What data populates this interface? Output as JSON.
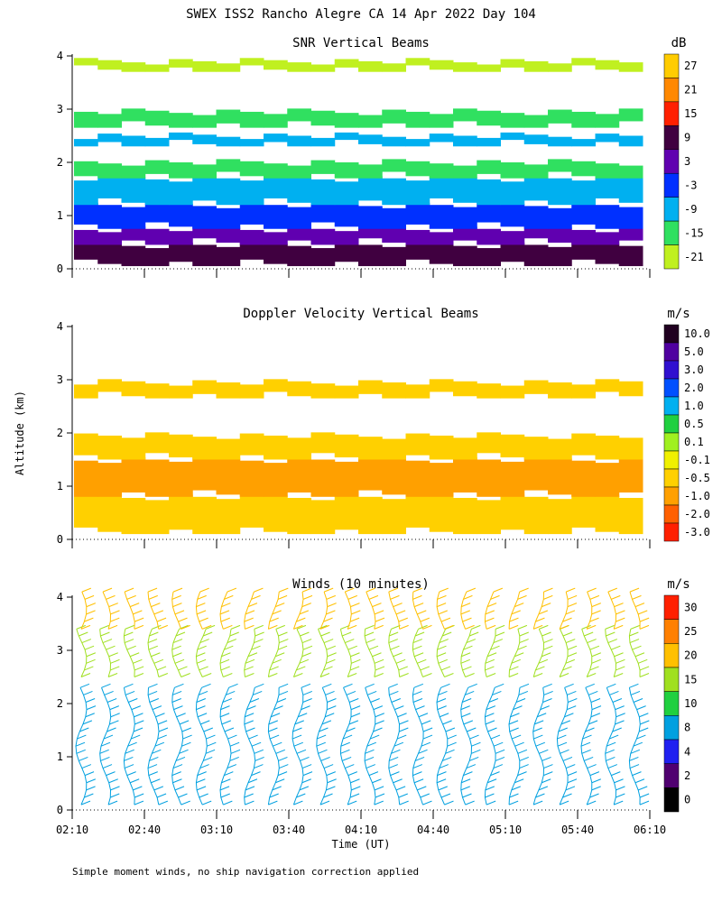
{
  "figure_title": "SWEX ISS2 Rancho Alegre CA  14 Apr 2022 Day 104",
  "footnote": "Simple moment winds, no ship navigation correction applied",
  "shared_axes": {
    "ylabel": "Altitude (km)",
    "xlabel": "Time (UT)",
    "y_ticks": [
      "0",
      "1",
      "2",
      "3",
      "4"
    ],
    "x_ticks": [
      "02:10",
      "02:40",
      "03:10",
      "03:40",
      "04:10",
      "04:40",
      "05:10",
      "05:40",
      "06:10"
    ]
  },
  "chart_data": [
    {
      "type": "heatmap",
      "title": "SNR Vertical Beams",
      "xlim": [
        "02:10",
        "06:10"
      ],
      "ylim": [
        0,
        4
      ],
      "colorbar": {
        "unit": "dB",
        "labels": [
          "27",
          "21",
          "15",
          "9",
          "3",
          "-3",
          "-9",
          "-15",
          "-21"
        ],
        "colors": [
          "#ffcc00",
          "#ff8800",
          "#ff2000",
          "#400040",
          "#6000b0",
          "#0030ff",
          "#00b0f0",
          "#30e060",
          "#c0f020"
        ]
      },
      "bands": [
        {
          "y0": 0.05,
          "y1": 0.45,
          "level": "9"
        },
        {
          "y0": 0.45,
          "y1": 0.75,
          "level": "3"
        },
        {
          "y0": 0.75,
          "y1": 1.2,
          "level": "-3"
        },
        {
          "y0": 1.2,
          "y1": 1.7,
          "level": "-9"
        },
        {
          "y0": 1.7,
          "y1": 2.0,
          "level": "-15"
        },
        {
          "y0": 2.3,
          "y1": 2.5,
          "level": "-9"
        },
        {
          "y0": 2.65,
          "y1": 2.95,
          "level": "-15"
        },
        {
          "y0": 3.7,
          "y1": 3.9,
          "level": "-21"
        }
      ]
    },
    {
      "type": "heatmap",
      "title": "Doppler Velocity Vertical Beams",
      "xlim": [
        "02:10",
        "06:10"
      ],
      "ylim": [
        0,
        4
      ],
      "colorbar": {
        "unit": "m/s",
        "labels": [
          "10.0",
          "5.0",
          "3.0",
          "2.0",
          "1.0",
          "0.5",
          "0.1",
          "-0.1",
          "-0.5",
          "-1.0",
          "-2.0",
          "-3.0"
        ],
        "colors": [
          "#200020",
          "#5000a0",
          "#3010d0",
          "#0050ff",
          "#00b0f0",
          "#20d040",
          "#a0f020",
          "#f0f000",
          "#ffd000",
          "#ffa000",
          "#ff6000",
          "#ff2000"
        ]
      },
      "bands": [
        {
          "y0": 0.1,
          "y1": 0.8,
          "level": "-0.5"
        },
        {
          "y0": 0.8,
          "y1": 1.5,
          "level": "-1.0"
        },
        {
          "y0": 1.5,
          "y1": 1.95,
          "level": "-0.5"
        },
        {
          "y0": 2.65,
          "y1": 2.95,
          "level": "-0.5"
        }
      ]
    },
    {
      "type": "scatter",
      "title": "Winds (10 minutes)",
      "xlim": [
        "02:10",
        "06:10"
      ],
      "ylim": [
        0,
        4
      ],
      "colorbar": {
        "unit": "m/s",
        "labels": [
          "30",
          "25",
          "20",
          "15",
          "10",
          "8",
          "4",
          "2",
          "0"
        ],
        "colors": [
          "#ff2000",
          "#ff8000",
          "#ffc000",
          "#a0e020",
          "#20d040",
          "#00a0e0",
          "#2020f0",
          "#500070",
          "#000000"
        ]
      },
      "profile_times": [
        "02:10",
        "02:20",
        "02:30",
        "02:40",
        "02:50",
        "03:00",
        "03:10",
        "03:20",
        "03:30",
        "03:40",
        "03:50",
        "04:00",
        "04:10",
        "04:20",
        "04:30",
        "04:40",
        "04:50",
        "05:00",
        "05:10",
        "05:20",
        "05:30",
        "05:40",
        "05:50",
        "06:00"
      ],
      "profiles": [
        {
          "y0": 0.1,
          "y1": 2.3,
          "speed": "8"
        },
        {
          "y0": 2.5,
          "y1": 3.4,
          "speed": "15"
        },
        {
          "y0": 3.4,
          "y1": 4.1,
          "speed": "20"
        }
      ]
    }
  ]
}
